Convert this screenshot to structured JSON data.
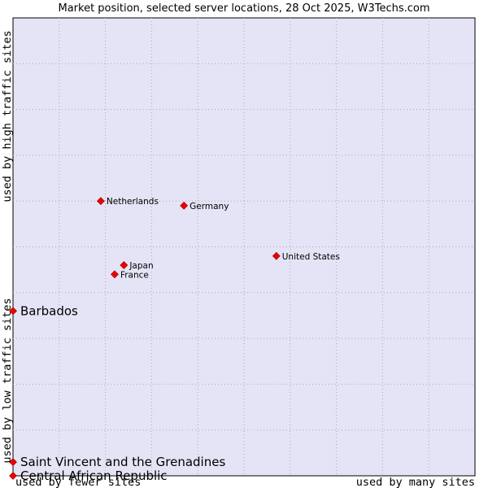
{
  "chart_data": {
    "type": "scatter",
    "title": "Market position, selected server locations, 28 Oct 2025, W3Techs.com",
    "xlabel_low": "used by fewer sites",
    "xlabel_high": "used by many sites",
    "ylabel_low": "used by low traffic sites",
    "ylabel_high": "used by high traffic sites",
    "xlim": [
      0,
      100
    ],
    "ylim": [
      0,
      100
    ],
    "grid": true,
    "background_color": "#e4e4f6",
    "point_color": "#ee0000",
    "points": [
      {
        "name": "Netherlands",
        "x": 19,
        "y": 60,
        "label_size": "small"
      },
      {
        "name": "Germany",
        "x": 37,
        "y": 59,
        "label_size": "small"
      },
      {
        "name": "United States",
        "x": 57,
        "y": 48,
        "label_size": "small"
      },
      {
        "name": "Japan",
        "x": 24,
        "y": 46,
        "label_size": "small"
      },
      {
        "name": "France",
        "x": 22,
        "y": 44,
        "label_size": "small"
      },
      {
        "name": "Barbados",
        "x": 0,
        "y": 36,
        "label_size": "large"
      },
      {
        "name": "Saint Vincent and the Grenadines",
        "x": 0,
        "y": 3,
        "label_size": "large"
      },
      {
        "name": "Central African Republic",
        "x": 0,
        "y": 0,
        "label_size": "large"
      }
    ]
  }
}
